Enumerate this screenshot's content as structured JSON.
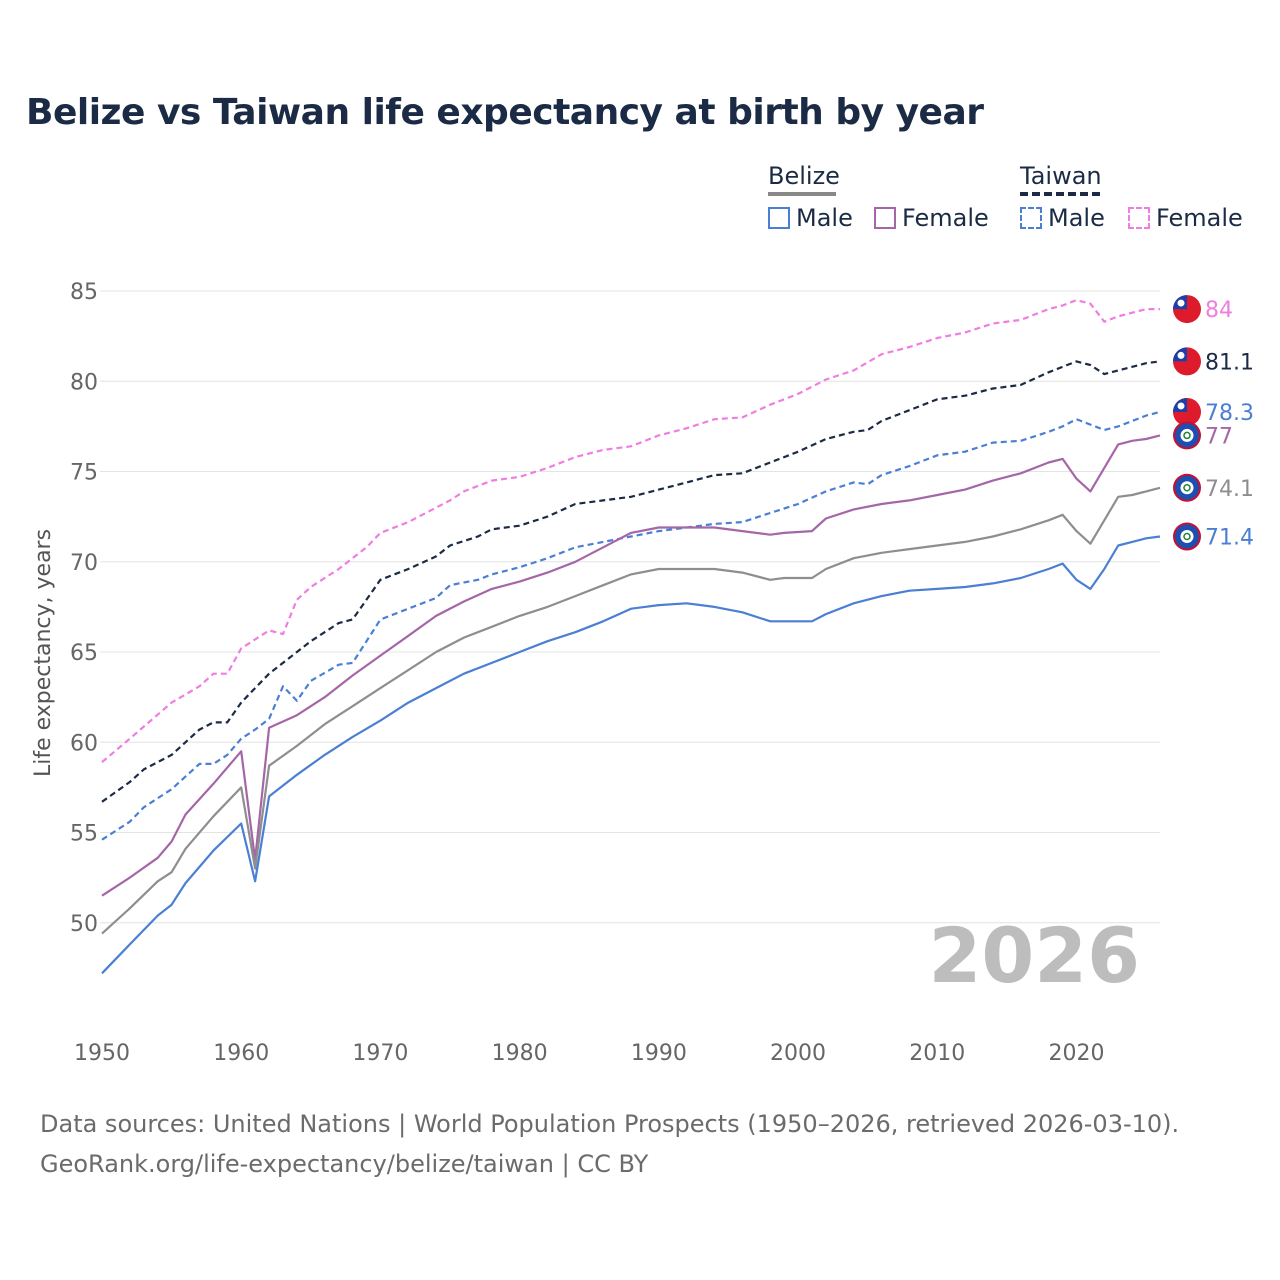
{
  "title": "Belize vs Taiwan life expectancy at birth by year",
  "legend": {
    "groups": [
      {
        "name": "Belize",
        "items": [
          {
            "label": "Male",
            "color": "#4a7fd4",
            "dashed": false
          },
          {
            "label": "Female",
            "color": "#a566a8",
            "dashed": false
          }
        ],
        "rule_color": "#888888",
        "rule_dashed": false
      },
      {
        "name": "Taiwan",
        "items": [
          {
            "label": "Male",
            "color": "#4a7fd4",
            "dashed": true
          },
          {
            "label": "Female",
            "color": "#f07de0",
            "dashed": true
          }
        ],
        "rule_color": "#1c2b45",
        "rule_dashed": true
      }
    ]
  },
  "year_watermark": "2026",
  "source_line1": "Data sources: United Nations | World Population Prospects (1950–2026, retrieved 2026-03-10).",
  "source_line2": "GeoRank.org/life-expectancy/belize/taiwan | CC BY",
  "chart_data": {
    "type": "line",
    "title": "Belize vs Taiwan life expectancy at birth by year",
    "xlabel": "",
    "ylabel": "Life expectancy, years",
    "xlim": [
      1950,
      2026
    ],
    "ylim": [
      45.5,
      85.5
    ],
    "xticks": [
      1950,
      1960,
      1970,
      1980,
      1990,
      2000,
      2010,
      2020
    ],
    "yticks": [
      50,
      55,
      60,
      65,
      70,
      75,
      80,
      85
    ],
    "series": [
      {
        "name": "Taiwan Female",
        "color": "#f07de0",
        "dashed": true,
        "end_label": "84",
        "flag": "taiwan",
        "points": [
          [
            1950,
            58.9
          ],
          [
            1952,
            60.2
          ],
          [
            1955,
            62.2
          ],
          [
            1957,
            63.1
          ],
          [
            1958,
            63.8
          ],
          [
            1959,
            63.8
          ],
          [
            1960,
            65.2
          ],
          [
            1962,
            66.2
          ],
          [
            1963,
            66.0
          ],
          [
            1964,
            67.9
          ],
          [
            1965,
            68.6
          ],
          [
            1967,
            69.6
          ],
          [
            1969,
            70.8
          ],
          [
            1970,
            71.6
          ],
          [
            1972,
            72.2
          ],
          [
            1975,
            73.4
          ],
          [
            1976,
            73.9
          ],
          [
            1978,
            74.5
          ],
          [
            1980,
            74.7
          ],
          [
            1982,
            75.2
          ],
          [
            1984,
            75.8
          ],
          [
            1986,
            76.2
          ],
          [
            1988,
            76.4
          ],
          [
            1990,
            77.0
          ],
          [
            1992,
            77.4
          ],
          [
            1994,
            77.9
          ],
          [
            1996,
            78.0
          ],
          [
            1998,
            78.7
          ],
          [
            2000,
            79.3
          ],
          [
            2002,
            80.1
          ],
          [
            2004,
            80.6
          ],
          [
            2006,
            81.5
          ],
          [
            2008,
            81.9
          ],
          [
            2010,
            82.4
          ],
          [
            2012,
            82.7
          ],
          [
            2014,
            83.2
          ],
          [
            2016,
            83.4
          ],
          [
            2018,
            84.0
          ],
          [
            2019,
            84.2
          ],
          [
            2020,
            84.5
          ],
          [
            2021,
            84.3
          ],
          [
            2022,
            83.3
          ],
          [
            2023,
            83.6
          ],
          [
            2024,
            83.8
          ],
          [
            2025,
            84.0
          ],
          [
            2026,
            84.0
          ]
        ]
      },
      {
        "name": "Taiwan (total)",
        "color": "#1c2b45",
        "dashed": true,
        "end_label": "81.1",
        "flag": "taiwan",
        "points": [
          [
            1950,
            56.7
          ],
          [
            1952,
            57.8
          ],
          [
            1953,
            58.5
          ],
          [
            1955,
            59.3
          ],
          [
            1957,
            60.7
          ],
          [
            1958,
            61.1
          ],
          [
            1959,
            61.1
          ],
          [
            1960,
            62.2
          ],
          [
            1961,
            63.0
          ],
          [
            1962,
            63.8
          ],
          [
            1964,
            65.0
          ],
          [
            1965,
            65.6
          ],
          [
            1967,
            66.6
          ],
          [
            1968,
            66.8
          ],
          [
            1970,
            69.0
          ],
          [
            1972,
            69.6
          ],
          [
            1974,
            70.3
          ],
          [
            1975,
            70.9
          ],
          [
            1977,
            71.4
          ],
          [
            1978,
            71.8
          ],
          [
            1980,
            72.0
          ],
          [
            1982,
            72.5
          ],
          [
            1984,
            73.2
          ],
          [
            1986,
            73.4
          ],
          [
            1988,
            73.6
          ],
          [
            1990,
            74.0
          ],
          [
            1992,
            74.4
          ],
          [
            1994,
            74.8
          ],
          [
            1996,
            74.9
          ],
          [
            1998,
            75.5
          ],
          [
            2000,
            76.1
          ],
          [
            2002,
            76.8
          ],
          [
            2004,
            77.2
          ],
          [
            2005,
            77.3
          ],
          [
            2006,
            77.8
          ],
          [
            2008,
            78.4
          ],
          [
            2010,
            79.0
          ],
          [
            2012,
            79.2
          ],
          [
            2014,
            79.6
          ],
          [
            2016,
            79.8
          ],
          [
            2018,
            80.5
          ],
          [
            2019,
            80.8
          ],
          [
            2020,
            81.1
          ],
          [
            2021,
            80.9
          ],
          [
            2022,
            80.4
          ],
          [
            2023,
            80.6
          ],
          [
            2024,
            80.8
          ],
          [
            2025,
            81.0
          ],
          [
            2026,
            81.1
          ]
        ]
      },
      {
        "name": "Taiwan Male",
        "color": "#4a7fd4",
        "dashed": true,
        "end_label": "78.3",
        "flag": "taiwan",
        "points": [
          [
            1950,
            54.6
          ],
          [
            1952,
            55.6
          ],
          [
            1953,
            56.4
          ],
          [
            1955,
            57.4
          ],
          [
            1957,
            58.8
          ],
          [
            1958,
            58.8
          ],
          [
            1959,
            59.3
          ],
          [
            1960,
            60.2
          ],
          [
            1961,
            60.7
          ],
          [
            1962,
            61.3
          ],
          [
            1963,
            63.1
          ],
          [
            1964,
            62.3
          ],
          [
            1965,
            63.4
          ],
          [
            1967,
            64.3
          ],
          [
            1968,
            64.4
          ],
          [
            1970,
            66.8
          ],
          [
            1972,
            67.4
          ],
          [
            1974,
            68.0
          ],
          [
            1975,
            68.7
          ],
          [
            1977,
            69.0
          ],
          [
            1978,
            69.3
          ],
          [
            1980,
            69.7
          ],
          [
            1982,
            70.2
          ],
          [
            1984,
            70.8
          ],
          [
            1986,
            71.1
          ],
          [
            1988,
            71.4
          ],
          [
            1990,
            71.7
          ],
          [
            1992,
            71.9
          ],
          [
            1994,
            72.1
          ],
          [
            1996,
            72.2
          ],
          [
            1998,
            72.7
          ],
          [
            2000,
            73.2
          ],
          [
            2002,
            73.9
          ],
          [
            2004,
            74.4
          ],
          [
            2005,
            74.3
          ],
          [
            2006,
            74.8
          ],
          [
            2008,
            75.3
          ],
          [
            2010,
            75.9
          ],
          [
            2012,
            76.1
          ],
          [
            2014,
            76.6
          ],
          [
            2016,
            76.7
          ],
          [
            2018,
            77.2
          ],
          [
            2019,
            77.5
          ],
          [
            2020,
            77.9
          ],
          [
            2021,
            77.6
          ],
          [
            2022,
            77.3
          ],
          [
            2023,
            77.5
          ],
          [
            2024,
            77.8
          ],
          [
            2025,
            78.1
          ],
          [
            2026,
            78.3
          ]
        ]
      },
      {
        "name": "Belize Female",
        "color": "#a566a8",
        "dashed": false,
        "end_label": "77",
        "flag": "belize",
        "points": [
          [
            1950,
            51.5
          ],
          [
            1952,
            52.5
          ],
          [
            1954,
            53.6
          ],
          [
            1955,
            54.5
          ],
          [
            1956,
            56.0
          ],
          [
            1958,
            57.7
          ],
          [
            1960,
            59.5
          ],
          [
            1961,
            53.5
          ],
          [
            1962,
            60.8
          ],
          [
            1964,
            61.5
          ],
          [
            1966,
            62.5
          ],
          [
            1968,
            63.7
          ],
          [
            1970,
            64.8
          ],
          [
            1972,
            65.9
          ],
          [
            1974,
            67.0
          ],
          [
            1976,
            67.8
          ],
          [
            1978,
            68.5
          ],
          [
            1980,
            68.9
          ],
          [
            1982,
            69.4
          ],
          [
            1984,
            70.0
          ],
          [
            1986,
            70.8
          ],
          [
            1988,
            71.6
          ],
          [
            1990,
            71.9
          ],
          [
            1992,
            71.9
          ],
          [
            1994,
            71.9
          ],
          [
            1996,
            71.7
          ],
          [
            1998,
            71.5
          ],
          [
            1999,
            71.6
          ],
          [
            2001,
            71.7
          ],
          [
            2002,
            72.4
          ],
          [
            2004,
            72.9
          ],
          [
            2006,
            73.2
          ],
          [
            2008,
            73.4
          ],
          [
            2010,
            73.7
          ],
          [
            2012,
            74.0
          ],
          [
            2014,
            74.5
          ],
          [
            2016,
            74.9
          ],
          [
            2018,
            75.5
          ],
          [
            2019,
            75.7
          ],
          [
            2020,
            74.6
          ],
          [
            2021,
            73.9
          ],
          [
            2022,
            75.2
          ],
          [
            2023,
            76.5
          ],
          [
            2024,
            76.7
          ],
          [
            2025,
            76.8
          ],
          [
            2026,
            77.0
          ]
        ]
      },
      {
        "name": "Belize (total)",
        "color": "#8e8e8e",
        "dashed": false,
        "end_label": "74.1",
        "flag": "belize",
        "points": [
          [
            1950,
            49.4
          ],
          [
            1952,
            50.8
          ],
          [
            1954,
            52.3
          ],
          [
            1955,
            52.8
          ],
          [
            1956,
            54.1
          ],
          [
            1958,
            55.9
          ],
          [
            1960,
            57.5
          ],
          [
            1961,
            53.0
          ],
          [
            1962,
            58.7
          ],
          [
            1964,
            59.8
          ],
          [
            1966,
            61.0
          ],
          [
            1968,
            62.0
          ],
          [
            1970,
            63.0
          ],
          [
            1972,
            64.0
          ],
          [
            1974,
            65.0
          ],
          [
            1976,
            65.8
          ],
          [
            1978,
            66.4
          ],
          [
            1980,
            67.0
          ],
          [
            1982,
            67.5
          ],
          [
            1984,
            68.1
          ],
          [
            1986,
            68.7
          ],
          [
            1988,
            69.3
          ],
          [
            1990,
            69.6
          ],
          [
            1992,
            69.6
          ],
          [
            1994,
            69.6
          ],
          [
            1996,
            69.4
          ],
          [
            1998,
            69.0
          ],
          [
            1999,
            69.1
          ],
          [
            2001,
            69.1
          ],
          [
            2002,
            69.6
          ],
          [
            2004,
            70.2
          ],
          [
            2006,
            70.5
          ],
          [
            2008,
            70.7
          ],
          [
            2010,
            70.9
          ],
          [
            2012,
            71.1
          ],
          [
            2014,
            71.4
          ],
          [
            2016,
            71.8
          ],
          [
            2018,
            72.3
          ],
          [
            2019,
            72.6
          ],
          [
            2020,
            71.7
          ],
          [
            2021,
            71.0
          ],
          [
            2022,
            72.3
          ],
          [
            2023,
            73.6
          ],
          [
            2024,
            73.7
          ],
          [
            2025,
            73.9
          ],
          [
            2026,
            74.1
          ]
        ]
      },
      {
        "name": "Belize Male",
        "color": "#4a7fd4",
        "dashed": false,
        "end_label": "71.4",
        "flag": "belize",
        "points": [
          [
            1950,
            47.2
          ],
          [
            1952,
            48.8
          ],
          [
            1954,
            50.4
          ],
          [
            1955,
            51.0
          ],
          [
            1956,
            52.2
          ],
          [
            1958,
            54.0
          ],
          [
            1960,
            55.5
          ],
          [
            1961,
            52.3
          ],
          [
            1962,
            57.0
          ],
          [
            1964,
            58.2
          ],
          [
            1966,
            59.3
          ],
          [
            1968,
            60.3
          ],
          [
            1970,
            61.2
          ],
          [
            1972,
            62.2
          ],
          [
            1974,
            63.0
          ],
          [
            1976,
            63.8
          ],
          [
            1978,
            64.4
          ],
          [
            1980,
            65.0
          ],
          [
            1982,
            65.6
          ],
          [
            1984,
            66.1
          ],
          [
            1986,
            66.7
          ],
          [
            1988,
            67.4
          ],
          [
            1990,
            67.6
          ],
          [
            1992,
            67.7
          ],
          [
            1994,
            67.5
          ],
          [
            1996,
            67.2
          ],
          [
            1998,
            66.7
          ],
          [
            1999,
            66.7
          ],
          [
            2001,
            66.7
          ],
          [
            2002,
            67.1
          ],
          [
            2004,
            67.7
          ],
          [
            2006,
            68.1
          ],
          [
            2008,
            68.4
          ],
          [
            2010,
            68.5
          ],
          [
            2012,
            68.6
          ],
          [
            2014,
            68.8
          ],
          [
            2016,
            69.1
          ],
          [
            2018,
            69.6
          ],
          [
            2019,
            69.9
          ],
          [
            2020,
            69.0
          ],
          [
            2021,
            68.5
          ],
          [
            2022,
            69.6
          ],
          [
            2023,
            70.9
          ],
          [
            2024,
            71.1
          ],
          [
            2025,
            71.3
          ],
          [
            2026,
            71.4
          ]
        ]
      }
    ]
  }
}
